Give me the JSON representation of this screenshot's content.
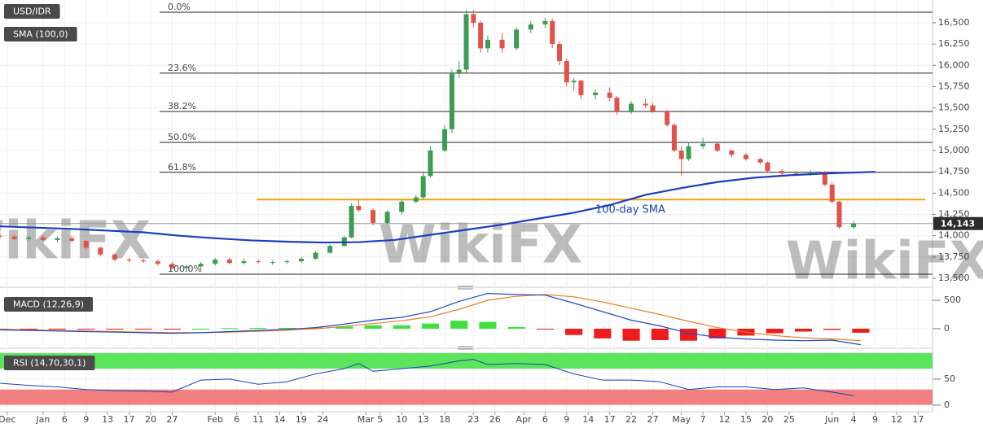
{
  "chart_data": [
    {
      "type": "candlestick",
      "title": "USD/IDR",
      "watermark": "WikiFX",
      "xlim": [
        0,
        130
      ],
      "ylim": [
        13424,
        16767
      ],
      "yticks": [
        {
          "value": 13500,
          "label": "13,500"
        },
        {
          "value": 13750,
          "label": "13,750"
        },
        {
          "value": 14000,
          "label": "14,000"
        },
        {
          "value": 14250,
          "label": "14,250"
        },
        {
          "value": 14500,
          "label": "14,500"
        },
        {
          "value": 14750,
          "label": "14,750"
        },
        {
          "value": 15000,
          "label": "15,000"
        },
        {
          "value": 15250,
          "label": "15,250"
        },
        {
          "value": 15500,
          "label": "15,500"
        },
        {
          "value": 15750,
          "label": "15,750"
        },
        {
          "value": 16000,
          "label": "16,000"
        },
        {
          "value": 16250,
          "label": "16,250"
        },
        {
          "value": 16500,
          "label": "16,500"
        }
      ],
      "up_color": "#3c9c54",
      "down_color": "#e0524a",
      "candles": {
        "x": [
          0,
          2,
          4,
          6,
          8,
          10,
          12,
          14,
          16,
          18,
          20,
          22,
          24,
          26,
          28,
          30,
          32,
          34,
          36,
          38,
          40,
          42,
          44,
          46,
          48,
          49,
          50,
          52,
          54,
          56,
          58,
          59,
          60,
          62,
          63,
          64,
          65,
          66,
          67,
          68,
          70,
          72,
          74,
          76,
          77,
          78,
          79,
          80,
          81,
          83,
          85,
          86,
          88,
          90,
          91,
          93,
          94,
          95,
          96,
          98,
          100,
          102,
          104,
          106,
          107,
          109,
          111,
          113,
          115,
          116,
          117,
          119
        ],
        "open": [
          14000,
          13990,
          13960,
          13980,
          13950,
          13970,
          13940,
          13860,
          13780,
          13720,
          13710,
          13700,
          13670,
          13620,
          13640,
          13670,
          13720,
          13680,
          13700,
          13690,
          13690,
          13700,
          13730,
          13800,
          13880,
          13980,
          14350,
          14300,
          14150,
          14280,
          14400,
          14450,
          14700,
          15000,
          15250,
          15900,
          15950,
          16600,
          16500,
          16200,
          16300,
          16200,
          16420,
          16480,
          16520,
          16250,
          16050,
          15800,
          15820,
          15650,
          15680,
          15620,
          15450,
          15550,
          15530,
          15460,
          15300,
          15000,
          14900,
          15050,
          15080,
          15000,
          14950,
          14900,
          14860,
          14760,
          14730,
          14720,
          14750,
          14600,
          14400,
          14100
        ],
        "high": [
          14030,
          14010,
          14000,
          14000,
          13990,
          14000,
          13950,
          13870,
          13790,
          13740,
          13730,
          13720,
          13690,
          13660,
          13690,
          13740,
          13740,
          13730,
          13720,
          13710,
          13720,
          13750,
          13820,
          13900,
          14000,
          14380,
          14420,
          14320,
          14300,
          14420,
          14480,
          14750,
          15050,
          15300,
          15950,
          16050,
          16650,
          16650,
          16520,
          16350,
          16380,
          16450,
          16520,
          16560,
          16550,
          16280,
          16080,
          15850,
          15830,
          15720,
          15740,
          15640,
          15580,
          15610,
          15560,
          15480,
          15320,
          15050,
          15100,
          15150,
          15090,
          15010,
          14970,
          14910,
          14870,
          14780,
          14760,
          14770,
          14760,
          14620,
          14410,
          14170
        ],
        "low": [
          13970,
          13950,
          13940,
          13930,
          13920,
          13920,
          13840,
          13760,
          13700,
          13690,
          13680,
          13650,
          13600,
          13580,
          13620,
          13650,
          13660,
          13660,
          13670,
          13660,
          13670,
          13680,
          13720,
          13790,
          13870,
          13970,
          14280,
          14120,
          14130,
          14250,
          14380,
          14430,
          14680,
          14980,
          15200,
          15850,
          15900,
          16450,
          16150,
          16150,
          16150,
          16180,
          16380,
          16440,
          16200,
          16000,
          15750,
          15700,
          15600,
          15600,
          15580,
          15420,
          15430,
          15500,
          15440,
          15280,
          14980,
          14700,
          14880,
          15020,
          14980,
          14920,
          14880,
          14840,
          14740,
          14710,
          14700,
          14700,
          14580,
          14380,
          14080,
          14080
        ],
        "close": [
          13990,
          13960,
          13980,
          13950,
          13970,
          13940,
          13860,
          13780,
          13720,
          13710,
          13700,
          13670,
          13620,
          13640,
          13670,
          13720,
          13680,
          13700,
          13690,
          13690,
          13700,
          13730,
          13800,
          13880,
          13980,
          14350,
          14300,
          14150,
          14280,
          14400,
          14450,
          14700,
          15000,
          15250,
          15900,
          15950,
          16600,
          16500,
          16200,
          16300,
          16200,
          16420,
          16480,
          16520,
          16250,
          16050,
          15800,
          15820,
          15650,
          15680,
          15620,
          15450,
          15550,
          15530,
          15460,
          15300,
          15000,
          14900,
          15050,
          15080,
          15000,
          14950,
          14900,
          14860,
          14760,
          14730,
          14720,
          14750,
          14600,
          14400,
          14100,
          14143
        ]
      },
      "series": [
        {
          "name": "SMA (100,0)",
          "color": "#1c3fbf",
          "x": [
            0,
            10,
            20,
            25,
            30,
            35,
            40,
            45,
            50,
            55,
            60,
            65,
            70,
            75,
            80,
            85,
            90,
            95,
            100,
            105,
            110,
            115,
            122
          ],
          "values": [
            14110,
            14080,
            14040,
            14000,
            13970,
            13945,
            13930,
            13920,
            13925,
            13950,
            14010,
            14070,
            14130,
            14200,
            14270,
            14360,
            14480,
            14560,
            14630,
            14680,
            14710,
            14730,
            14750
          ]
        }
      ],
      "annotation": "100-day SMA",
      "fib_levels": [
        {
          "label": "0.0%",
          "value": 16624
        },
        {
          "label": "23.6%",
          "value": 15908
        },
        {
          "label": "38.2%",
          "value": 15459
        },
        {
          "label": "50.0%",
          "value": 15096
        },
        {
          "label": "61.8%",
          "value": 14744
        },
        {
          "label": "100.0%",
          "value": 13548
        }
      ],
      "resistance": {
        "value": 14424,
        "x": [
          35.8,
          129
        ],
        "color": "#f39c12"
      },
      "last_price": {
        "value": 14143,
        "label": "14,143"
      }
    },
    {
      "type": "macd",
      "title": "MACD (12,26,9)",
      "xlim": [
        0,
        130
      ],
      "ylim": [
        -300,
        657
      ],
      "yticks": [
        500,
        0
      ],
      "x": [
        0,
        4,
        8,
        12,
        16,
        20,
        24,
        28,
        32,
        36,
        40,
        44,
        48,
        52,
        56,
        60,
        64,
        68,
        72,
        76,
        80,
        84,
        88,
        92,
        96,
        100,
        104,
        108,
        112,
        116,
        120
      ],
      "macd": {
        "color": "#1c49c9",
        "values": [
          -20,
          -30,
          -40,
          -50,
          -60,
          -70,
          -80,
          -70,
          -50,
          -30,
          -10,
          20,
          80,
          150,
          200,
          300,
          480,
          620,
          600,
          590,
          450,
          300,
          150,
          50,
          -80,
          -150,
          -180,
          -200,
          -210,
          -200,
          -280
        ]
      },
      "signal": {
        "color": "#f07c1f",
        "values": [
          -10,
          -20,
          -30,
          -40,
          -50,
          -60,
          -70,
          -70,
          -60,
          -45,
          -25,
          0,
          40,
          90,
          140,
          210,
          340,
          500,
          570,
          600,
          560,
          470,
          360,
          250,
          130,
          20,
          -60,
          -120,
          -160,
          -180,
          -210
        ]
      },
      "histogram": {
        "up_color": "#3fe03f",
        "down_color": "#ee1c1c",
        "values": [
          -10,
          -10,
          -10,
          -10,
          -10,
          -10,
          -10,
          0,
          10,
          15,
          15,
          20,
          40,
          60,
          60,
          90,
          140,
          120,
          30,
          -10,
          -110,
          -170,
          -210,
          -200,
          -210,
          -170,
          -120,
          -80,
          -50,
          -20,
          -70
        ]
      }
    },
    {
      "type": "rsi",
      "title": "RSI (14,70,30,1)",
      "xlim": [
        0,
        130
      ],
      "ylim": [
        -8,
        103
      ],
      "yticks": [
        50,
        0
      ],
      "overbought": [
        70,
        100
      ],
      "oversold": [
        0,
        30
      ],
      "overbought_color": "#3fe03f",
      "oversold_color": "#f06a6a",
      "x": [
        0,
        4,
        8,
        12,
        16,
        20,
        24,
        28,
        32,
        36,
        40,
        44,
        48,
        50,
        52,
        56,
        60,
        64,
        66,
        68,
        72,
        76,
        80,
        84,
        88,
        92,
        96,
        100,
        104,
        108,
        112,
        116,
        119
      ],
      "values": [
        42,
        38,
        35,
        30,
        28,
        27,
        25,
        48,
        50,
        40,
        45,
        60,
        70,
        80,
        65,
        70,
        75,
        85,
        88,
        78,
        80,
        78,
        60,
        48,
        48,
        45,
        30,
        35,
        35,
        30,
        33,
        25,
        18
      ],
      "color": "#1c3fbf",
      "xticks": [
        {
          "value": 1,
          "label": "Dec"
        },
        {
          "value": 6,
          "label": "Jan"
        },
        {
          "value": 9,
          "label": "6"
        },
        {
          "value": 12,
          "label": "9"
        },
        {
          "value": 15,
          "label": "13"
        },
        {
          "value": 18,
          "label": "17"
        },
        {
          "value": 21,
          "label": "20"
        },
        {
          "value": 24,
          "label": "27"
        },
        {
          "value": 30,
          "label": "Feb"
        },
        {
          "value": 33,
          "label": "6"
        },
        {
          "value": 36,
          "label": "11"
        },
        {
          "value": 39,
          "label": "14"
        },
        {
          "value": 42,
          "label": "19"
        },
        {
          "value": 45,
          "label": "24"
        },
        {
          "value": 51,
          "label": "Mar"
        },
        {
          "value": 53,
          "label": "5"
        },
        {
          "value": 56,
          "label": "10"
        },
        {
          "value": 59,
          "label": "13"
        },
        {
          "value": 62,
          "label": "18"
        },
        {
          "value": 66,
          "label": "23"
        },
        {
          "value": 69,
          "label": "26"
        },
        {
          "value": 73,
          "label": "Apr"
        },
        {
          "value": 76,
          "label": "6"
        },
        {
          "value": 79,
          "label": "9"
        },
        {
          "value": 82,
          "label": "14"
        },
        {
          "value": 85,
          "label": "17"
        },
        {
          "value": 88,
          "label": "22"
        },
        {
          "value": 91,
          "label": "27"
        },
        {
          "value": 95,
          "label": "May"
        },
        {
          "value": 98,
          "label": "7"
        },
        {
          "value": 101,
          "label": "12"
        },
        {
          "value": 104,
          "label": "15"
        },
        {
          "value": 107,
          "label": "20"
        },
        {
          "value": 110,
          "label": "25"
        },
        {
          "value": 116,
          "label": "Jun"
        },
        {
          "value": 119,
          "label": "4"
        },
        {
          "value": 122,
          "label": "9"
        },
        {
          "value": 125,
          "label": "12"
        },
        {
          "value": 128,
          "label": "17"
        }
      ]
    }
  ]
}
